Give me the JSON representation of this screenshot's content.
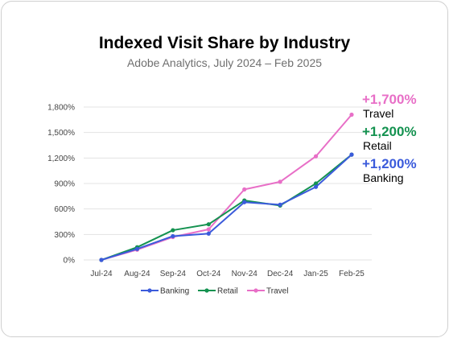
{
  "chart_data": {
    "type": "line",
    "title": "Indexed Visit Share by Industry",
    "subtitle": "Adobe Analytics, July 2024 – Feb 2025",
    "categories": [
      "Jul-24",
      "Aug-24",
      "Sep-24",
      "Oct-24",
      "Nov-24",
      "Dec-24",
      "Jan-25",
      "Feb-25"
    ],
    "ylim": [
      0,
      1800
    ],
    "yticks": [
      0,
      300,
      600,
      900,
      1200,
      1500,
      1800
    ],
    "ytick_labels": [
      "0%",
      "300%",
      "600%",
      "900%",
      "1,200%",
      "1,500%",
      "1,800%"
    ],
    "grid": "horizontal",
    "legend_position": "bottom",
    "series": [
      {
        "name": "Banking",
        "color": "#3b5bdb",
        "values": [
          0,
          130,
          280,
          310,
          680,
          650,
          860,
          1240
        ]
      },
      {
        "name": "Retail",
        "color": "#149250",
        "values": [
          0,
          150,
          350,
          420,
          700,
          640,
          900,
          1240
        ]
      },
      {
        "name": "Travel",
        "color": "#e86fc7",
        "values": [
          0,
          120,
          270,
          360,
          830,
          920,
          1220,
          1710
        ]
      }
    ],
    "annotations": [
      {
        "series": "Travel",
        "value_label": "+1,700%",
        "name_label": "Travel",
        "color": "#e86fc7"
      },
      {
        "series": "Retail",
        "value_label": "+1,200%",
        "name_label": "Retail",
        "color": "#149250"
      },
      {
        "series": "Banking",
        "value_label": "+1,200%",
        "name_label": "Banking",
        "color": "#3b5bdb"
      }
    ]
  }
}
